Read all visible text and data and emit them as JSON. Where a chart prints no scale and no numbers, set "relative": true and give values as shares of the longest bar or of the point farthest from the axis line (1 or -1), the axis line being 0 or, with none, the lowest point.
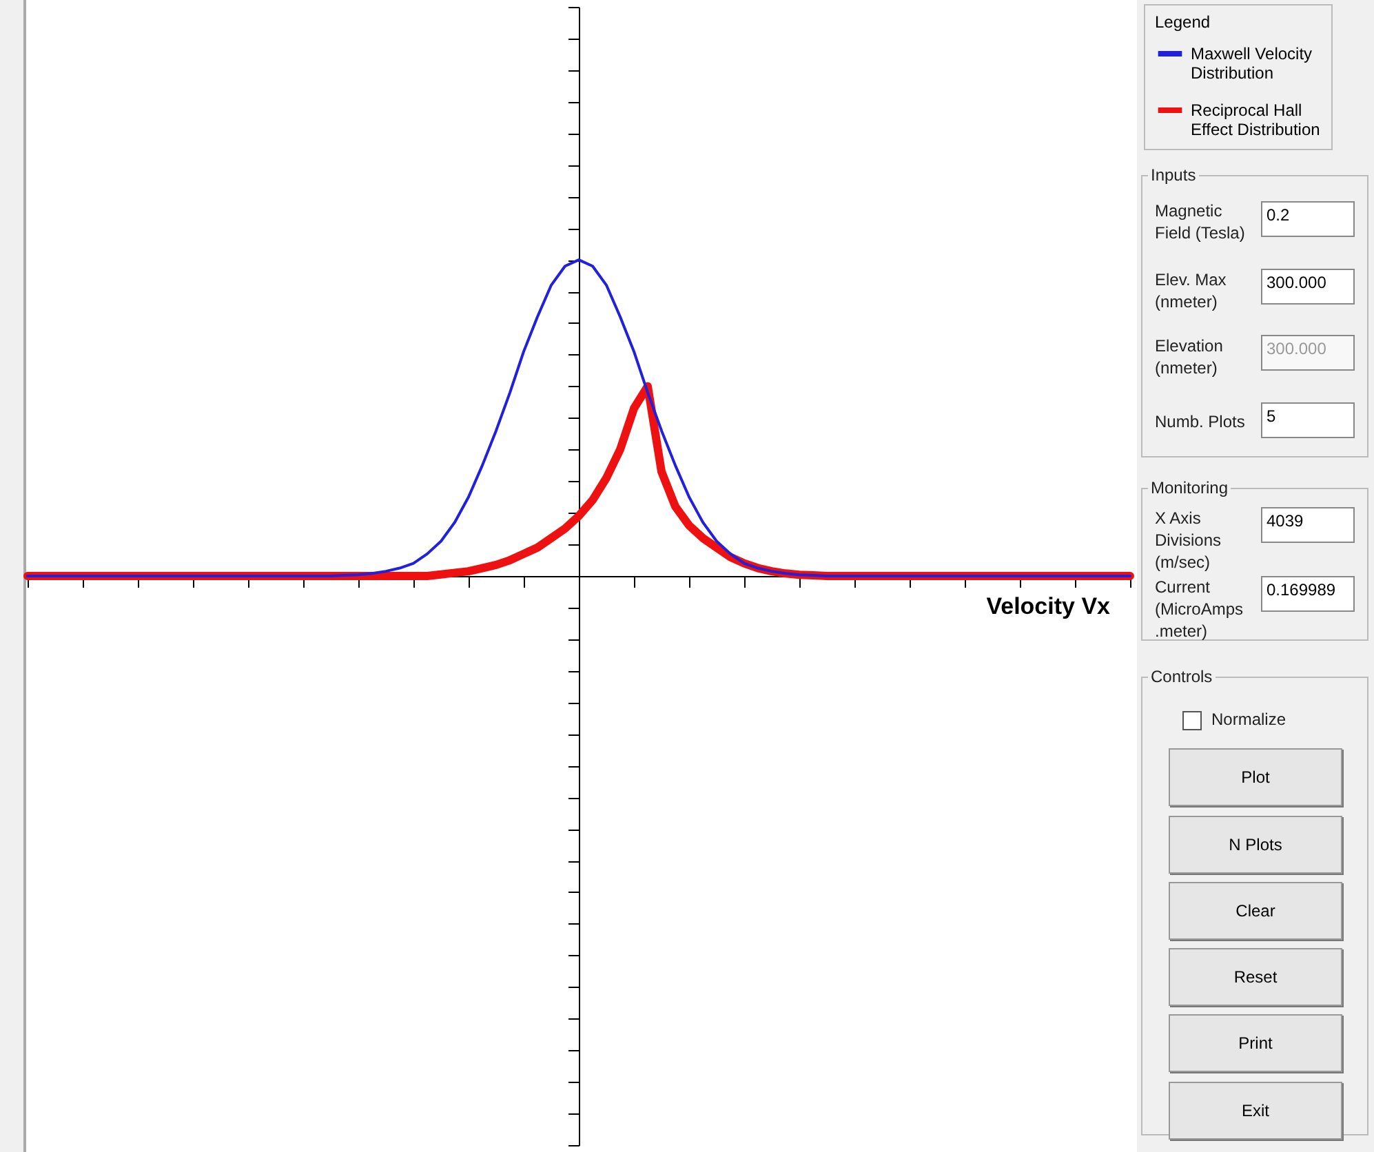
{
  "chart_data": [
    {
      "type": "line",
      "relative": true,
      "xlabel": "Velocity Vx",
      "legend_title": "Legend",
      "legend": "top right",
      "tick_labels": false,
      "marker": "none",
      "line_style": "solid",
      "categories": [
        null,
        null,
        null,
        null,
        null,
        null,
        null,
        null,
        null,
        null,
        null,
        null,
        null,
        null,
        null,
        null,
        null,
        null,
        null,
        null,
        null,
        null,
        null,
        null,
        null,
        null,
        null,
        null,
        null,
        null,
        null,
        null,
        null,
        null,
        null,
        null,
        null,
        null,
        null,
        null,
        null,
        null,
        null,
        null,
        null,
        null,
        null,
        null,
        null,
        null,
        null,
        null,
        null,
        null,
        null,
        null,
        null,
        null,
        null,
        null,
        null,
        null,
        null,
        null,
        null,
        null,
        null,
        null,
        null,
        null,
        null,
        null,
        null,
        null,
        null,
        null,
        null,
        null,
        null,
        null,
        null
      ],
      "series": [
        {
          "name": "Maxwell Velocity Distribution",
          "color": "#2020dd",
          "values": [
            0,
            0,
            0,
            0,
            0,
            0,
            0,
            0,
            0,
            0,
            0,
            0,
            0,
            0,
            0,
            0,
            0,
            0,
            0,
            0,
            0,
            0,
            0,
            0.002,
            0.004,
            0.008,
            0.015,
            0.025,
            0.04,
            0.07,
            0.11,
            0.17,
            0.25,
            0.35,
            0.46,
            0.58,
            0.71,
            0.82,
            0.92,
            0.98,
            1,
            0.98,
            0.92,
            0.82,
            0.71,
            0.58,
            0.46,
            0.35,
            0.25,
            0.17,
            0.11,
            0.07,
            0.04,
            0.025,
            0.015,
            0.008,
            0.004,
            0.002,
            0,
            0,
            0,
            0,
            0,
            0,
            0,
            0,
            0,
            0,
            0,
            0,
            0,
            0,
            0,
            0,
            0,
            0,
            0,
            0,
            0,
            0,
            0
          ]
        },
        {
          "name": "Reciprocal Hall Effect Distribution",
          "color": "#ee1111",
          "values": [
            0,
            0,
            0,
            0,
            0,
            0,
            0,
            0,
            0,
            0,
            0,
            0,
            0,
            0,
            0,
            0,
            0,
            0,
            0,
            0,
            0,
            0,
            0,
            0,
            0,
            0,
            0,
            0,
            0,
            0,
            0.005,
            0.01,
            0.015,
            0.025,
            0.035,
            0.05,
            0.07,
            0.09,
            0.12,
            0.15,
            0.19,
            0.24,
            0.31,
            0.4,
            0.53,
            0.6,
            0.33,
            0.22,
            0.16,
            0.12,
            0.09,
            0.06,
            0.04,
            0.025,
            0.015,
            0.008,
            0.004,
            0.002,
            0,
            0,
            0,
            0,
            0,
            0,
            0,
            0,
            0,
            0,
            0,
            0,
            0,
            0,
            0,
            0,
            0,
            0,
            0,
            0,
            0,
            0,
            0
          ]
        }
      ]
    },
    {
      "type": "other",
      "annotations": [
        "Inputs",
        "Magnetic Field (Tesla)",
        "0.2",
        "Elev. Max (nmeter)",
        "300.000",
        "Elevation (nmeter)",
        "300.000",
        "Numb. Plots",
        "5",
        "Monitoring",
        "X Axis Divisions (m/sec)",
        "4039",
        "Current (MicroAmps .meter)",
        "0.169989",
        "Controls",
        "Normalize",
        "Plot",
        "N Plots",
        "Clear",
        "Reset",
        "Print",
        "Exit"
      ]
    }
  ]
}
